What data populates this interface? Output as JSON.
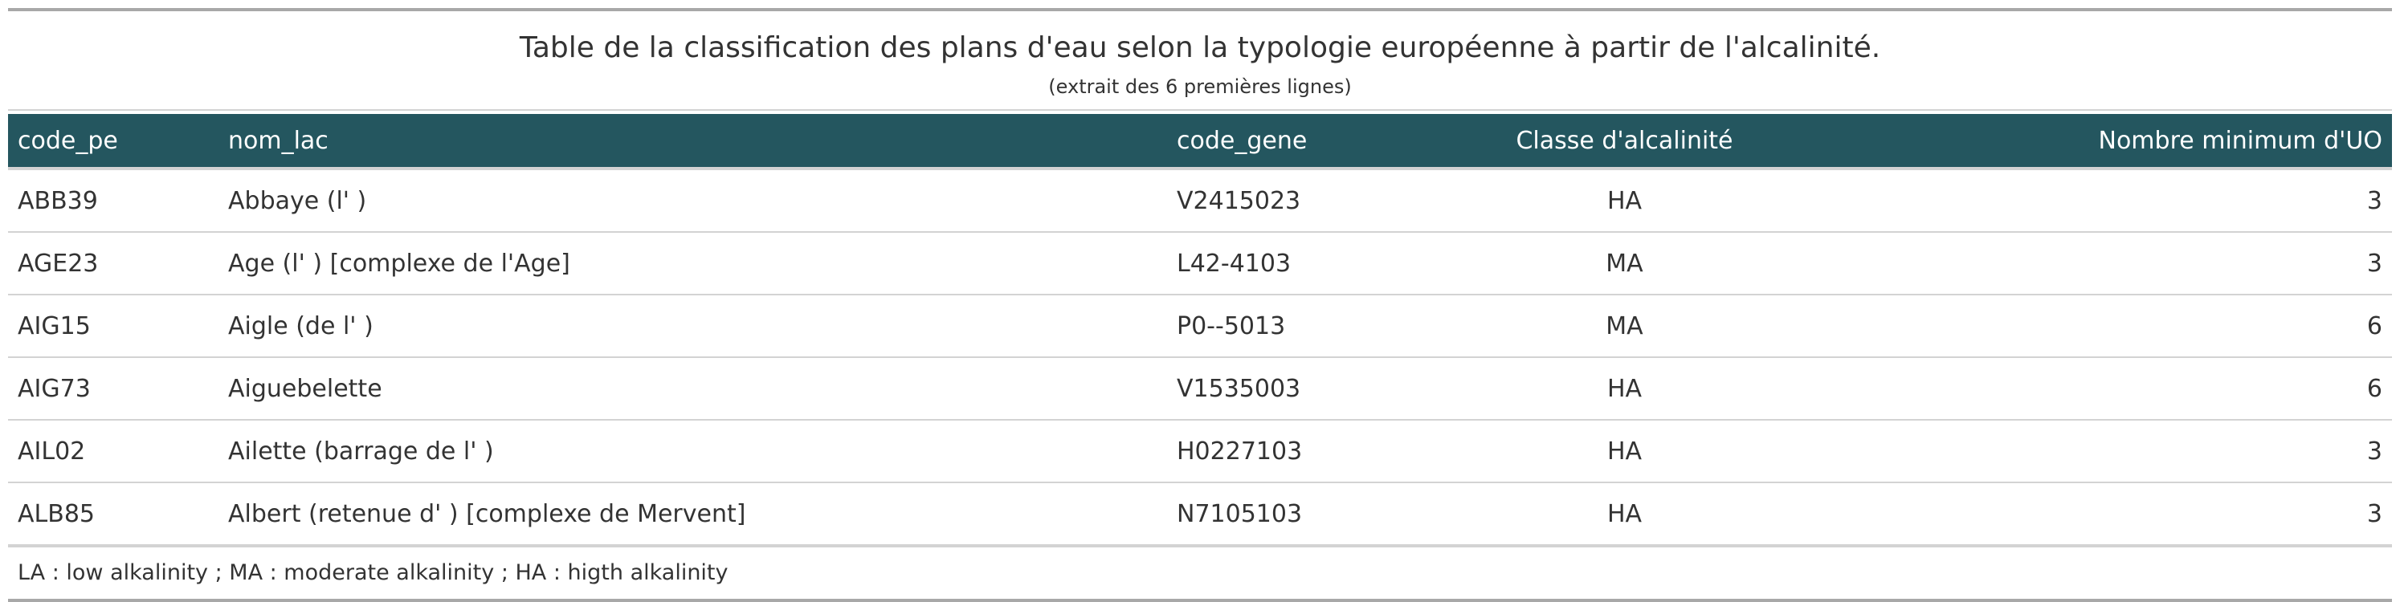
{
  "header": {
    "title": "Table de la classification des plans d'eau selon la typologie européenne à partir de l'alcalinité.",
    "subtitle": "(extrait des 6 premières lignes)"
  },
  "table": {
    "columns": [
      "code_pe",
      "nom_lac",
      "code_gene",
      "Classe d'alcalinité",
      "Nombre minimum d'UO"
    ],
    "rows": [
      [
        "ABB39",
        "Abbaye (l' )",
        "V2415023",
        "HA",
        "3"
      ],
      [
        "AGE23",
        "Age (l' ) [complexe de l'Age]",
        "L42-4103",
        "MA",
        "3"
      ],
      [
        "AIG15",
        "Aigle (de l' )",
        "P0--5013",
        "MA",
        "6"
      ],
      [
        "AIG73",
        "Aiguebelette",
        "V1535003",
        "HA",
        "6"
      ],
      [
        "AIL02",
        "Ailette (barrage de l' )",
        "H0227103",
        "HA",
        "3"
      ],
      [
        "ALB85",
        "Albert (retenue d' ) [complexe de Mervent]",
        "N7105103",
        "HA",
        "3"
      ]
    ]
  },
  "footnote": "LA : low alkalinity ; MA : moderate alkalinity ; HA : higth alkalinity",
  "colors": {
    "header_bg": "#24565f",
    "header_text": "#ffffff",
    "body_text": "#333333",
    "rule": "#d3d3d3",
    "outer_rule": "#a8a8a8"
  }
}
